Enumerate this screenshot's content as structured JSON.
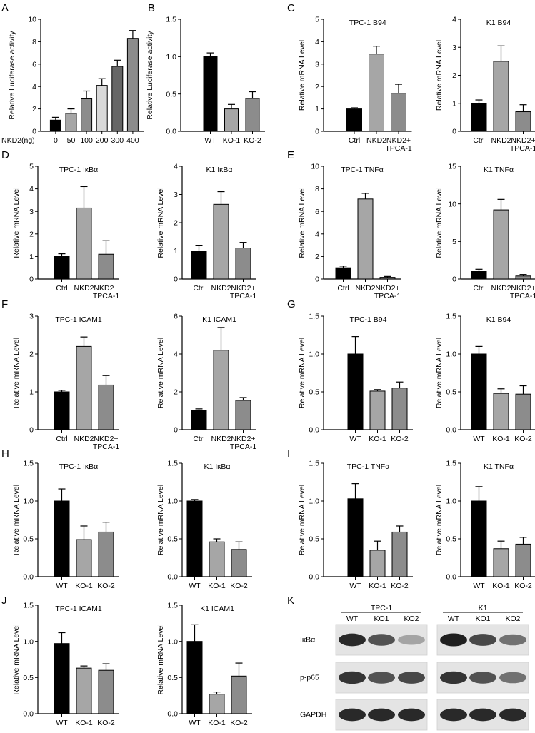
{
  "panel_labels": [
    "A",
    "B",
    "C",
    "D",
    "E",
    "F",
    "G",
    "H",
    "I",
    "J",
    "K"
  ],
  "colors": {
    "black": "#000000",
    "dark_gray": "#666666",
    "mid_gray": "#8c8c8c",
    "light_gray": "#a6a6a6",
    "pale_gray": "#d9d9d9"
  },
  "chart_data": [
    {
      "id": "A",
      "type": "bar",
      "title": "",
      "ylabel": "Relative Luciferase activity",
      "xlabel_prefix": "NKD2(ng)",
      "categories": [
        "0",
        "50",
        "100",
        "200",
        "300",
        "400"
      ],
      "values": [
        1.0,
        1.6,
        2.9,
        4.1,
        5.8,
        8.3
      ],
      "errors": [
        0.25,
        0.4,
        0.7,
        0.6,
        0.55,
        0.7
      ],
      "ylim": [
        0,
        10
      ],
      "yticks": [
        "0",
        "2",
        "4",
        "6",
        "8",
        "10"
      ],
      "colors": [
        "#000000",
        "#a6a6a6",
        "#8c8c8c",
        "#d9d9d9",
        "#666666",
        "#8c8c8c"
      ]
    },
    {
      "id": "B",
      "type": "bar",
      "title": "",
      "ylabel": "Relative Luciferase activity",
      "categories": [
        "WT",
        "KO-1",
        "KO-2"
      ],
      "values": [
        1.0,
        0.3,
        0.44
      ],
      "errors": [
        0.05,
        0.06,
        0.09
      ],
      "ylim": [
        0,
        1.5
      ],
      "yticks": [
        "0.0",
        "0.5",
        "1.0",
        "1.5"
      ],
      "colors": [
        "#000000",
        "#a6a6a6",
        "#8c8c8c"
      ]
    },
    {
      "id": "C1",
      "type": "bar",
      "title": "TPC-1 B94",
      "ylabel": "Relative mRNA Level",
      "categories": [
        "Ctrl",
        "NKD2",
        "NKD2+\nTPCA-1"
      ],
      "values": [
        1.0,
        3.45,
        1.7
      ],
      "errors": [
        0.05,
        0.35,
        0.4
      ],
      "ylim": [
        0,
        5
      ],
      "yticks": [
        "0",
        "1",
        "2",
        "3",
        "4",
        "5"
      ],
      "colors": [
        "#000000",
        "#a6a6a6",
        "#8c8c8c"
      ]
    },
    {
      "id": "C2",
      "type": "bar",
      "title": "K1 B94",
      "ylabel": "Relative mRNA Level",
      "categories": [
        "Ctrl",
        "NKD2",
        "NKD2+\nTPCA-1"
      ],
      "values": [
        1.0,
        2.5,
        0.7
      ],
      "errors": [
        0.12,
        0.55,
        0.25
      ],
      "ylim": [
        0,
        4
      ],
      "yticks": [
        "0",
        "1",
        "2",
        "3",
        "4"
      ],
      "colors": [
        "#000000",
        "#a6a6a6",
        "#8c8c8c"
      ]
    },
    {
      "id": "D1",
      "type": "bar",
      "title": "TPC-1 IκBα",
      "ylabel": "Relative mRNA Level",
      "categories": [
        "Ctrl",
        "NKD2",
        "NKD2+\nTPCA-1"
      ],
      "values": [
        1.0,
        3.15,
        1.1
      ],
      "errors": [
        0.12,
        0.95,
        0.6
      ],
      "ylim": [
        0,
        5
      ],
      "yticks": [
        "0",
        "1",
        "2",
        "3",
        "4",
        "5"
      ],
      "colors": [
        "#000000",
        "#a6a6a6",
        "#8c8c8c"
      ]
    },
    {
      "id": "D2",
      "type": "bar",
      "title": "K1 IκBα",
      "ylabel": "Relative mRNA Level",
      "categories": [
        "Ctrl",
        "NKD2",
        "NKD2+\nTPCA-1"
      ],
      "values": [
        1.0,
        2.65,
        1.1
      ],
      "errors": [
        0.2,
        0.45,
        0.2
      ],
      "ylim": [
        0,
        4
      ],
      "yticks": [
        "0",
        "1",
        "2",
        "3",
        "4"
      ],
      "colors": [
        "#000000",
        "#a6a6a6",
        "#8c8c8c"
      ]
    },
    {
      "id": "E1",
      "type": "bar",
      "title": "TPC-1 TNFα",
      "ylabel": "Relative mRNA Level",
      "categories": [
        "Ctrl",
        "NKD2",
        "NKD2+\nTPCA-1"
      ],
      "values": [
        1.0,
        7.1,
        0.15
      ],
      "errors": [
        0.15,
        0.5,
        0.08
      ],
      "ylim": [
        0,
        10
      ],
      "yticks": [
        "0",
        "2",
        "4",
        "6",
        "8",
        "10"
      ],
      "colors": [
        "#000000",
        "#a6a6a6",
        "#8c8c8c"
      ]
    },
    {
      "id": "E2",
      "type": "bar",
      "title": "K1 TNFα",
      "ylabel": "Relative mRNA Level",
      "categories": [
        "Ctrl",
        "NKD2",
        "NKD2+\nTPCA-1"
      ],
      "values": [
        1.0,
        9.2,
        0.4
      ],
      "errors": [
        0.3,
        1.4,
        0.2
      ],
      "ylim": [
        0,
        15
      ],
      "yticks": [
        "0",
        "5",
        "10",
        "15"
      ],
      "colors": [
        "#000000",
        "#a6a6a6",
        "#8c8c8c"
      ]
    },
    {
      "id": "F1",
      "type": "bar",
      "title": "TPC-1 ICAM1",
      "ylabel": "Relative mRNA Level",
      "categories": [
        "Ctrl",
        "NKD2",
        "NKD2+\nTPCA-1"
      ],
      "values": [
        1.0,
        2.2,
        1.18
      ],
      "errors": [
        0.04,
        0.25,
        0.25
      ],
      "ylim": [
        0,
        3
      ],
      "yticks": [
        "0",
        "1",
        "2",
        "3"
      ],
      "colors": [
        "#000000",
        "#a6a6a6",
        "#8c8c8c"
      ]
    },
    {
      "id": "F2",
      "type": "bar",
      "title": "K1 ICAM1",
      "ylabel": "Relative mRNA Level",
      "categories": [
        "Ctrl",
        "NKD2",
        "NKD2+\nTPCA-1"
      ],
      "values": [
        1.0,
        4.2,
        1.55
      ],
      "errors": [
        0.1,
        1.2,
        0.15
      ],
      "ylim": [
        0,
        6
      ],
      "yticks": [
        "0",
        "2",
        "4",
        "6"
      ],
      "colors": [
        "#000000",
        "#a6a6a6",
        "#8c8c8c"
      ]
    },
    {
      "id": "G1",
      "type": "bar",
      "title": "TPC-1 B94",
      "ylabel": "Relative mRNA Level",
      "categories": [
        "WT",
        "KO-1",
        "KO-2"
      ],
      "values": [
        1.0,
        0.51,
        0.55
      ],
      "errors": [
        0.23,
        0.02,
        0.08
      ],
      "ylim": [
        0,
        1.5
      ],
      "yticks": [
        "0.0",
        "0.5",
        "1.0",
        "1.5"
      ],
      "colors": [
        "#000000",
        "#a6a6a6",
        "#8c8c8c"
      ]
    },
    {
      "id": "G2",
      "type": "bar",
      "title": "K1 B94",
      "ylabel": "Relative mRNA Level",
      "categories": [
        "WT",
        "KO-1",
        "KO-2"
      ],
      "values": [
        1.0,
        0.48,
        0.47
      ],
      "errors": [
        0.1,
        0.06,
        0.11
      ],
      "ylim": [
        0,
        1.5
      ],
      "yticks": [
        "0.0",
        "0.5",
        "1.0",
        "1.5"
      ],
      "colors": [
        "#000000",
        "#a6a6a6",
        "#8c8c8c"
      ]
    },
    {
      "id": "H1",
      "type": "bar",
      "title": "TPC-1 IκBα",
      "ylabel": "Relative mRNA Level",
      "categories": [
        "WT",
        "KO-1",
        "KO-2"
      ],
      "values": [
        1.0,
        0.49,
        0.59
      ],
      "errors": [
        0.16,
        0.18,
        0.13
      ],
      "ylim": [
        0,
        1.5
      ],
      "yticks": [
        "0.0",
        "0.5",
        "1.0",
        "1.5"
      ],
      "colors": [
        "#000000",
        "#a6a6a6",
        "#8c8c8c"
      ]
    },
    {
      "id": "H2",
      "type": "bar",
      "title": "K1 IκBα",
      "ylabel": "Relative mRNA Level",
      "categories": [
        "WT",
        "KO-1",
        "KO-2"
      ],
      "values": [
        1.0,
        0.46,
        0.36
      ],
      "errors": [
        0.02,
        0.04,
        0.1
      ],
      "ylim": [
        0,
        1.5
      ],
      "yticks": [
        "0.0",
        "0.5",
        "1.0",
        "1.5"
      ],
      "colors": [
        "#000000",
        "#a6a6a6",
        "#8c8c8c"
      ]
    },
    {
      "id": "I1",
      "type": "bar",
      "title": "TPC-1 TNFα",
      "ylabel": "Relative mRNA Level",
      "categories": [
        "WT",
        "KO-1",
        "KO-2"
      ],
      "values": [
        1.03,
        0.35,
        0.59
      ],
      "errors": [
        0.2,
        0.12,
        0.08
      ],
      "ylim": [
        0,
        1.5
      ],
      "yticks": [
        "0.0",
        "0.5",
        "1.0",
        "1.5"
      ],
      "colors": [
        "#000000",
        "#a6a6a6",
        "#8c8c8c"
      ]
    },
    {
      "id": "I2",
      "type": "bar",
      "title": "K1 TNFα",
      "ylabel": "Relative mRNA Level",
      "categories": [
        "WT",
        "KO-1",
        "KO-2"
      ],
      "values": [
        1.0,
        0.37,
        0.43
      ],
      "errors": [
        0.19,
        0.1,
        0.09
      ],
      "ylim": [
        0,
        1.5
      ],
      "yticks": [
        "0.0",
        "0.5",
        "1.0",
        "1.5"
      ],
      "colors": [
        "#000000",
        "#a6a6a6",
        "#8c8c8c"
      ]
    },
    {
      "id": "J1",
      "type": "bar",
      "title": "TPC-1 ICAM1",
      "ylabel": "Relative mRNA Level",
      "categories": [
        "WT",
        "KO-1",
        "KO-2"
      ],
      "values": [
        0.97,
        0.63,
        0.6
      ],
      "errors": [
        0.15,
        0.03,
        0.09
      ],
      "ylim": [
        0,
        1.5
      ],
      "yticks": [
        "0.0",
        "0.5",
        "1.0",
        "1.5"
      ],
      "colors": [
        "#000000",
        "#a6a6a6",
        "#8c8c8c"
      ]
    },
    {
      "id": "J2",
      "type": "bar",
      "title": "K1 ICAM1",
      "ylabel": "Relative mRNA Level",
      "categories": [
        "WT",
        "KO-1",
        "KO-2"
      ],
      "values": [
        1.0,
        0.27,
        0.52
      ],
      "errors": [
        0.23,
        0.03,
        0.18
      ],
      "ylim": [
        0,
        1.5
      ],
      "yticks": [
        "0.0",
        "0.5",
        "1.0",
        "1.5"
      ],
      "colors": [
        "#000000",
        "#a6a6a6",
        "#8c8c8c"
      ]
    }
  ],
  "western_blot": {
    "groups": [
      {
        "name": "TPC-1",
        "lanes": [
          "WT",
          "KO1",
          "KO2"
        ]
      },
      {
        "name": "K1",
        "lanes": [
          "WT",
          "KO1",
          "KO2"
        ]
      }
    ],
    "rows": [
      {
        "label": "IκBα",
        "intensity": [
          [
            0.95,
            0.75,
            0.35
          ],
          [
            1.0,
            0.8,
            0.6
          ]
        ]
      },
      {
        "label": "p-p65",
        "intensity": [
          [
            0.9,
            0.75,
            0.8
          ],
          [
            0.9,
            0.75,
            0.6
          ]
        ]
      },
      {
        "label": "GAPDH",
        "intensity": [
          [
            0.95,
            0.95,
            0.95
          ],
          [
            0.95,
            0.95,
            0.95
          ]
        ]
      }
    ]
  }
}
